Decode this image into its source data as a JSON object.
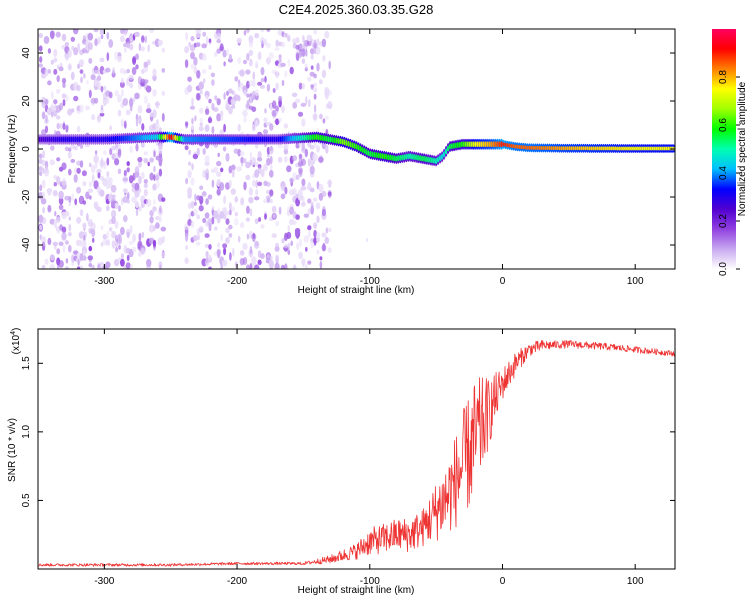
{
  "title": "C2E4.2025.360.03.35.G28",
  "chart_data": [
    {
      "type": "heatmap",
      "name": "spectrogram",
      "xlabel": "Height of straight line (km)",
      "ylabel": "Frequency (Hz)",
      "xlim": [
        -350,
        130
      ],
      "ylim": [
        -50,
        50
      ],
      "x_ticks": [
        -300,
        -200,
        -100,
        0,
        100
      ],
      "x_tick_labels": [
        "-300",
        "-200",
        "-100",
        "0",
        "100"
      ],
      "y_ticks": [
        -40,
        -20,
        0,
        20,
        40
      ],
      "y_tick_labels": [
        "-40",
        "-20",
        "0",
        "20",
        "40"
      ],
      "colorbar": {
        "label": "Normalized spectral amplitude",
        "range": [
          0,
          1
        ],
        "ticks": [
          0.0,
          0.2,
          0.4,
          0.6,
          0.8
        ],
        "tick_labels": [
          "0.0",
          "0.2",
          "0.4",
          "0.6",
          "0.8"
        ],
        "colors": [
          "#ffffff",
          "#c8a8f0",
          "#9040e0",
          "#5000d0",
          "#0000ff",
          "#00c0ff",
          "#00ffb0",
          "#00ff00",
          "#a0ff00",
          "#ffff00",
          "#ff8000",
          "#ff0000",
          "#ff0060"
        ]
      },
      "ridge_x": [
        -350,
        -330,
        -300,
        -260,
        -250,
        -240,
        -200,
        -170,
        -140,
        -130,
        -120,
        -110,
        -100,
        -90,
        -80,
        -70,
        -60,
        -50,
        -45,
        -40,
        -30,
        -20,
        -10,
        0,
        10,
        20,
        50,
        100,
        130
      ],
      "ridge_y": [
        4,
        4,
        4,
        5,
        5,
        4,
        4,
        4,
        5,
        4,
        3,
        1,
        -2,
        -3,
        -4,
        -3,
        -4,
        -5,
        -3,
        1,
        2,
        2,
        2,
        2,
        1,
        0.5,
        0.3,
        0.2,
        0.2
      ],
      "ridge_level": [
        0.25,
        0.3,
        0.3,
        0.45,
        0.95,
        0.4,
        0.35,
        0.3,
        0.6,
        0.55,
        0.65,
        0.6,
        0.55,
        0.6,
        0.55,
        0.5,
        0.55,
        0.5,
        0.45,
        0.55,
        0.6,
        0.75,
        0.8,
        0.9,
        0.85,
        0.85,
        0.8,
        0.75,
        0.75
      ]
    },
    {
      "type": "line",
      "name": "snr",
      "xlabel": "Height of straight line (km)",
      "ylabel": "SNR (10 * v/v)",
      "multiplier_label": "(x10",
      "multiplier_exp": "4",
      "multiplier_close": ")",
      "xlim": [
        -350,
        130
      ],
      "ylim": [
        0,
        1.75
      ],
      "x_ticks": [
        -300,
        -200,
        -100,
        0,
        100
      ],
      "x_tick_labels": [
        "-300",
        "-200",
        "-100",
        "0",
        "100"
      ],
      "y_ticks": [
        0.5,
        1.0,
        1.5
      ],
      "y_tick_labels": [
        "0.5",
        "1.0",
        "1.5"
      ],
      "color": "#ee3333",
      "envelope_x": [
        -350,
        -250,
        -200,
        -150,
        -130,
        -110,
        -100,
        -90,
        -80,
        -70,
        -60,
        -50,
        -40,
        -30,
        -25,
        -20,
        -15,
        -10,
        -5,
        0,
        10,
        20,
        30,
        50,
        80,
        100,
        130
      ],
      "envelope_y": [
        0.03,
        0.03,
        0.04,
        0.04,
        0.07,
        0.13,
        0.2,
        0.22,
        0.25,
        0.25,
        0.3,
        0.42,
        0.55,
        0.75,
        0.85,
        0.95,
        1.05,
        1.15,
        1.25,
        1.35,
        1.5,
        1.6,
        1.63,
        1.64,
        1.62,
        1.6,
        1.57
      ],
      "noise_x": [
        -350,
        -150,
        -130,
        -110,
        -100,
        -80,
        -60,
        -40,
        -30,
        -20,
        -10,
        0,
        20,
        40,
        130
      ],
      "noise_y": [
        0.01,
        0.01,
        0.03,
        0.06,
        0.1,
        0.12,
        0.14,
        0.3,
        0.4,
        0.45,
        0.25,
        0.12,
        0.05,
        0.03,
        0.02
      ]
    }
  ]
}
